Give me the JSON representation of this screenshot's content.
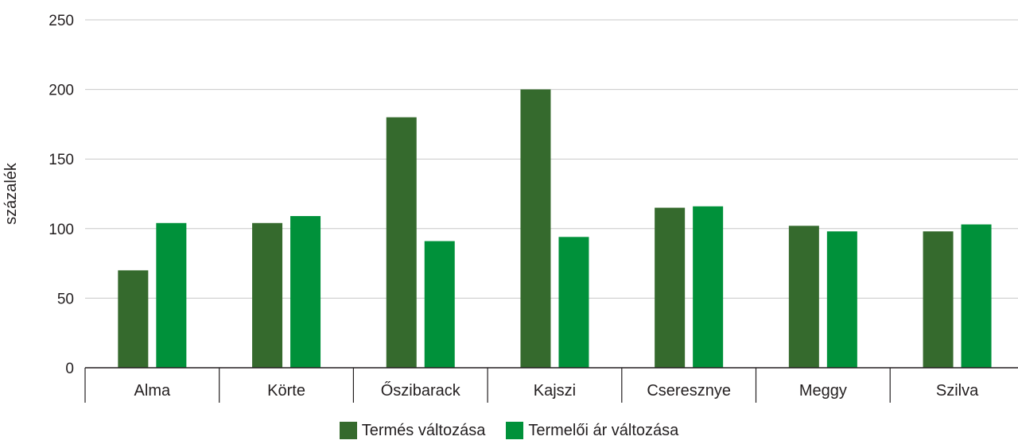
{
  "chart_data": {
    "type": "bar",
    "categories": [
      "Alma",
      "Körte",
      "Őszibarack",
      "Kajszi",
      "Cseresznye",
      "Meggy",
      "Szilva"
    ],
    "series": [
      {
        "name": "Termés változása",
        "color": "#356a2d",
        "values": [
          70,
          104,
          180,
          200,
          115,
          102,
          98
        ]
      },
      {
        "name": "Termelői ár változása",
        "color": "#00913a",
        "values": [
          104,
          109,
          91,
          94,
          116,
          98,
          103
        ]
      }
    ],
    "ylabel": "százalék",
    "xlabel": "",
    "title": "",
    "ylim": [
      0,
      250
    ],
    "yticks": [
      0,
      50,
      100,
      150,
      200,
      250
    ],
    "grid": true,
    "legend_position": "bottom"
  }
}
